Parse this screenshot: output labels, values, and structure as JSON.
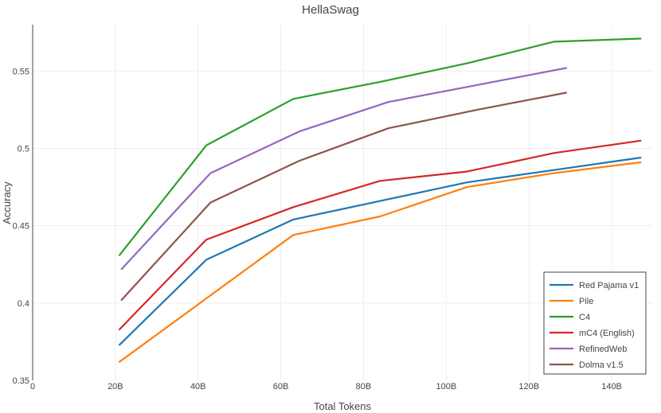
{
  "chart_data": {
    "type": "line",
    "title": "HellaSwag",
    "xlabel": "Total Tokens",
    "ylabel": "Accuracy",
    "xlim": [
      0,
      150
    ],
    "ylim": [
      0.35,
      0.58
    ],
    "x_ticks": [
      {
        "value": 0,
        "label": "0"
      },
      {
        "value": 20,
        "label": "20B"
      },
      {
        "value": 40,
        "label": "40B"
      },
      {
        "value": 60,
        "label": "60B"
      },
      {
        "value": 80,
        "label": "80B"
      },
      {
        "value": 100,
        "label": "100B"
      },
      {
        "value": 120,
        "label": "120B"
      },
      {
        "value": 140,
        "label": "140B"
      }
    ],
    "y_ticks": [
      {
        "value": 0.35,
        "label": "0.35"
      },
      {
        "value": 0.4,
        "label": "0.4"
      },
      {
        "value": 0.45,
        "label": "0.45"
      },
      {
        "value": 0.5,
        "label": "0.5"
      },
      {
        "value": 0.55,
        "label": "0.55"
      }
    ],
    "grid": true,
    "legend_position": "bottom-right",
    "series": [
      {
        "name": "Red Pajama v1",
        "color": "#1f77b4",
        "x": [
          21,
          42,
          63,
          84,
          105,
          126,
          147
        ],
        "y": [
          0.373,
          0.428,
          0.454,
          0.466,
          0.478,
          0.486,
          0.494
        ]
      },
      {
        "name": "Pile",
        "color": "#ff7f0e",
        "x": [
          21,
          42,
          63,
          84,
          105,
          126,
          147
        ],
        "y": [
          0.362,
          0.403,
          0.444,
          0.456,
          0.475,
          0.484,
          0.491
        ]
      },
      {
        "name": "C4",
        "color": "#2ca02c",
        "x": [
          21,
          42,
          63,
          84,
          105,
          126,
          147
        ],
        "y": [
          0.431,
          0.502,
          0.532,
          0.543,
          0.555,
          0.569,
          0.571
        ]
      },
      {
        "name": "mC4 (English)",
        "color": "#d62728",
        "x": [
          21,
          42,
          63,
          84,
          105,
          126,
          147
        ],
        "y": [
          0.383,
          0.441,
          0.462,
          0.479,
          0.485,
          0.497,
          0.505
        ]
      },
      {
        "name": "RefinedWeb",
        "color": "#9467bd",
        "x": [
          21.5,
          43,
          64.5,
          86,
          107.5,
          129
        ],
        "y": [
          0.422,
          0.484,
          0.511,
          0.53,
          0.541,
          0.552
        ]
      },
      {
        "name": "Dolma v1.5",
        "color": "#8c564b",
        "x": [
          21.5,
          43,
          64.5,
          86,
          107.5,
          129
        ],
        "y": [
          0.402,
          0.465,
          0.492,
          0.513,
          0.525,
          0.536
        ]
      }
    ]
  }
}
